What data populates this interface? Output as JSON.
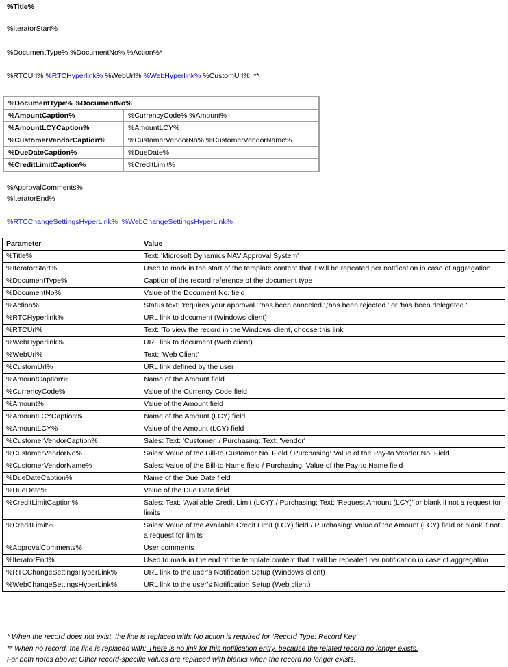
{
  "title": "%Title%",
  "iterator_start": "%IteratorStart%",
  "doc_line": "%DocumentType% %DocumentNo% %Action%*",
  "url_line": {
    "rtc_url": "%RTCUrl%",
    "rtc_hyperlink": "%RTCHyperlink%",
    "web_url": "%WebUrl%",
    "web_hyperlink": "%WebHyperlink%",
    "custom_url": "%CustomUrl%",
    "marker": "**"
  },
  "summary_table": {
    "header": "%DocumentType% %DocumentNo%",
    "rows": [
      {
        "k": "%AmountCaption%",
        "v": "%CurrencyCode% %Amount%"
      },
      {
        "k": "%AmountLCYCaption%",
        "v": "%AmountLCY%"
      },
      {
        "k": "%CustomerVendorCaption%",
        "v": "%CustomerVendorNo% %CustomerVendorName%"
      },
      {
        "k": "%DueDateCaption%",
        "v": "%DueDate%"
      },
      {
        "k": "%CreditLimitCaption%",
        "v": "%CreditLimit%"
      }
    ]
  },
  "approval_comments": "%ApprovalComments%",
  "iterator_end": "%IteratorEnd%",
  "change_settings": {
    "rtc": "%RTCChangeSettingsHyperLink%",
    "web": "%WebChangeSettingsHyperLink%"
  },
  "params_table": {
    "headers": [
      "Parameter",
      "Value"
    ],
    "rows": [
      [
        "%Title%",
        "Text: 'Microsoft Dynamics NAV Approval System'"
      ],
      [
        "%IteratorStart%",
        "Used to mark in the start of the template content that it will be repeated per notification in case of aggregation"
      ],
      [
        "%DocumentType%",
        "Caption of the record reference of the document type"
      ],
      [
        "%DocumentNo%",
        "Value of the Document No. field"
      ],
      [
        "%Action%",
        "Status text: 'requires your approval.','has been canceled.','has been rejected.' or 'has been delegated.'"
      ],
      [
        "%RTCHyperlink%",
        "URL link to document (Windows client)"
      ],
      [
        "%RTCUrl%",
        "Text: 'To view the record in the Windows client, choose this link'"
      ],
      [
        "%WebHyperlink%",
        "URL link to document (Web client)"
      ],
      [
        "%WebUrl%",
        "Text: 'Web Client'"
      ],
      [
        "%CustomUrl%",
        "URL link defined by the user"
      ],
      [
        "%AmountCaption%",
        "Name of the Amount field"
      ],
      [
        "%CurrencyCode%",
        "Value of the Currency Code field"
      ],
      [
        "%Amount%",
        "Value of the Amount field"
      ],
      [
        "%AmountLCYCaption%",
        "Name of the Amount (LCY) field"
      ],
      [
        "%AmountLCY%",
        "Value of the Amount (LCY) field"
      ],
      [
        "%CustomerVendorCaption%",
        "Sales: Text: 'Customer' / Purchasing: Text: 'Vendor'"
      ],
      [
        "%CustomerVendorNo%",
        "Sales: Value of the Bill-to Customer No. Field / Purchasing: Value of the Pay-to Vendor No. Field"
      ],
      [
        "%CustomerVendorName%",
        "Sales: Value of the Bill-to Name field / Purchasing: Value of the Pay-to Name field"
      ],
      [
        "%DueDateCaption%",
        "Name of the Due Date field"
      ],
      [
        "%DueDate%",
        "Value of the Due Date field"
      ],
      [
        "%CreditLimitCaption%",
        "Sales: Text: 'Available Credit Limit (LCY)' / Purchasing: Text: 'Request Amount (LCY)' or blank if not a request for limits"
      ],
      [
        "%CreditLimit%",
        "Sales: Value of the Available Credit Limit (LCY) field / Purchasing: Value of the Amount (LCY) field or blank if not a request for limits"
      ],
      [
        "%ApprovalComments%",
        "User comments"
      ],
      [
        "%IteratorEnd%",
        "Used to mark in the end of the template content that it will be repeated per notification in case of aggregation"
      ],
      [
        "%RTCChangeSettingsHyperLink%",
        "URL link to the user’s Notification Setup (Windows client)"
      ],
      [
        "%WebChangeSettingsHyperLink%",
        "URL link to the user’s Notification Setup (Web client)"
      ]
    ]
  },
  "notes": {
    "n1_prefix": "* When the record  does not exist, the line is replaced  with: ",
    "n1_text": "No action is required for ‘Record Type: Record Key’",
    "n2_prefix": "** When no record,  the line is replaced  with:",
    "n2_text": " There  is no link for this notification entry,  because the related record  no longer exists.",
    "n3": "For both notes above: Other record-specific  values are replaced with blanks when the record  no longer exists."
  }
}
